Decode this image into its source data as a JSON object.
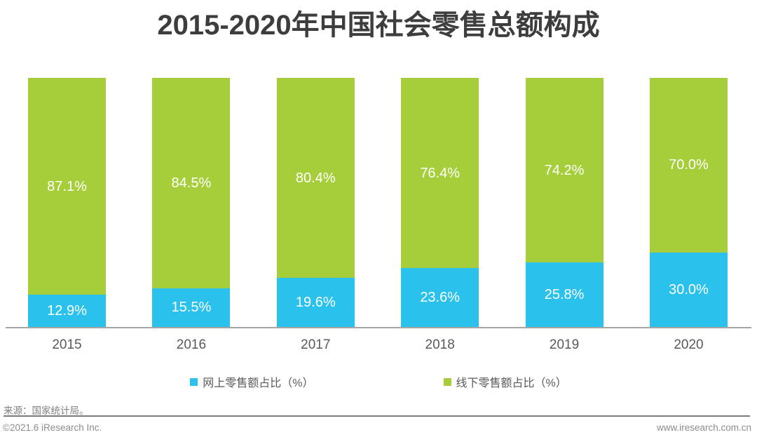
{
  "title": "2015-2020年中国社会零售总额构成",
  "chart_data": {
    "type": "bar",
    "stacked": true,
    "categories": [
      "2015",
      "2016",
      "2017",
      "2018",
      "2019",
      "2020"
    ],
    "series": [
      {
        "name": "网上零售额占比（%）",
        "color": "#2ac2ed",
        "position": "bottom",
        "values": [
          12.9,
          15.5,
          19.6,
          23.6,
          25.8,
          30.0
        ],
        "labels": [
          "12.9%",
          "15.5%",
          "19.6%",
          "23.6%",
          "25.8%",
          "30.0%"
        ]
      },
      {
        "name": "线下零售额占比（%）",
        "color": "#a6ce3b",
        "position": "top",
        "values": [
          87.1,
          84.5,
          80.4,
          76.4,
          74.2,
          70.0
        ],
        "labels": [
          "87.1%",
          "84.5%",
          "80.4%",
          "76.4%",
          "74.2%",
          "70.0%"
        ]
      }
    ],
    "ylim": [
      0,
      100
    ],
    "grid": false,
    "legend_position": "bottom",
    "label_color": "#ffffff",
    "axis_label_color": "#595959",
    "title_color": "#3d3d3d"
  },
  "source_note": "来源：国家统计局。",
  "footer": {
    "left": "©2021.6 iResearch Inc.",
    "right": "www.iresearch.com.cn"
  }
}
